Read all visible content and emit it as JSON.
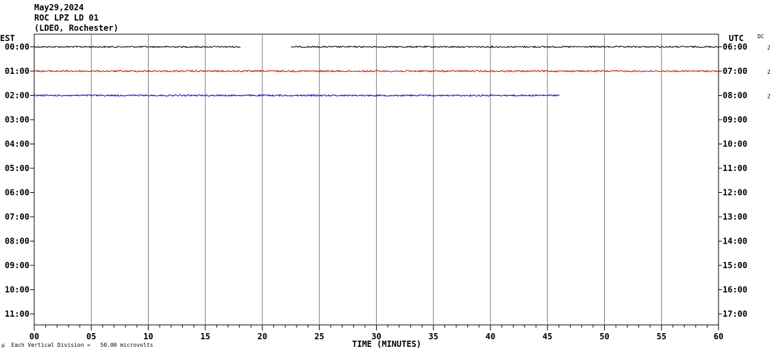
{
  "header": {
    "date": "May29,2024",
    "station": "ROC LPZ LD 01",
    "network": "(LDEO, Rochester)"
  },
  "left_tz": "EST",
  "right_tz": "UTC",
  "dc_label": "DC",
  "scale_note": "Each Vertical Division =   50.00 microvolts",
  "scale_mark": "μ",
  "chart_data": {
    "type": "line",
    "title": "ROC LPZ LD 01",
    "xlabel": "TIME (MINUTES)",
    "xlim": [
      0,
      60
    ],
    "x_ticks": [
      "00",
      "05",
      "10",
      "15",
      "20",
      "25",
      "30",
      "35",
      "40",
      "45",
      "50",
      "55",
      "60"
    ],
    "left_labels": [
      "00:00",
      "01:00",
      "02:00",
      "03:00",
      "04:00",
      "05:00",
      "06:00",
      "07:00",
      "08:00",
      "09:00",
      "10:00",
      "11:00"
    ],
    "right_labels": [
      "06:00",
      "07:00",
      "08:00",
      "09:00",
      "10:00",
      "11:00",
      "12:00",
      "13:00",
      "14:00",
      "15:00",
      "16:00",
      "17:00"
    ],
    "series": [
      {
        "row": "00:00",
        "color": "#000000",
        "segments": [
          [
            0,
            18.1
          ],
          [
            22.5,
            60
          ]
        ],
        "dc": "2"
      },
      {
        "row": "01:00",
        "color": "#cc0000",
        "segments": [
          [
            0,
            60
          ]
        ],
        "dc": "2"
      },
      {
        "row": "02:00",
        "color": "#0000cc",
        "segments": [
          [
            0,
            46.1
          ]
        ],
        "dc": "2"
      }
    ],
    "grid": true
  }
}
